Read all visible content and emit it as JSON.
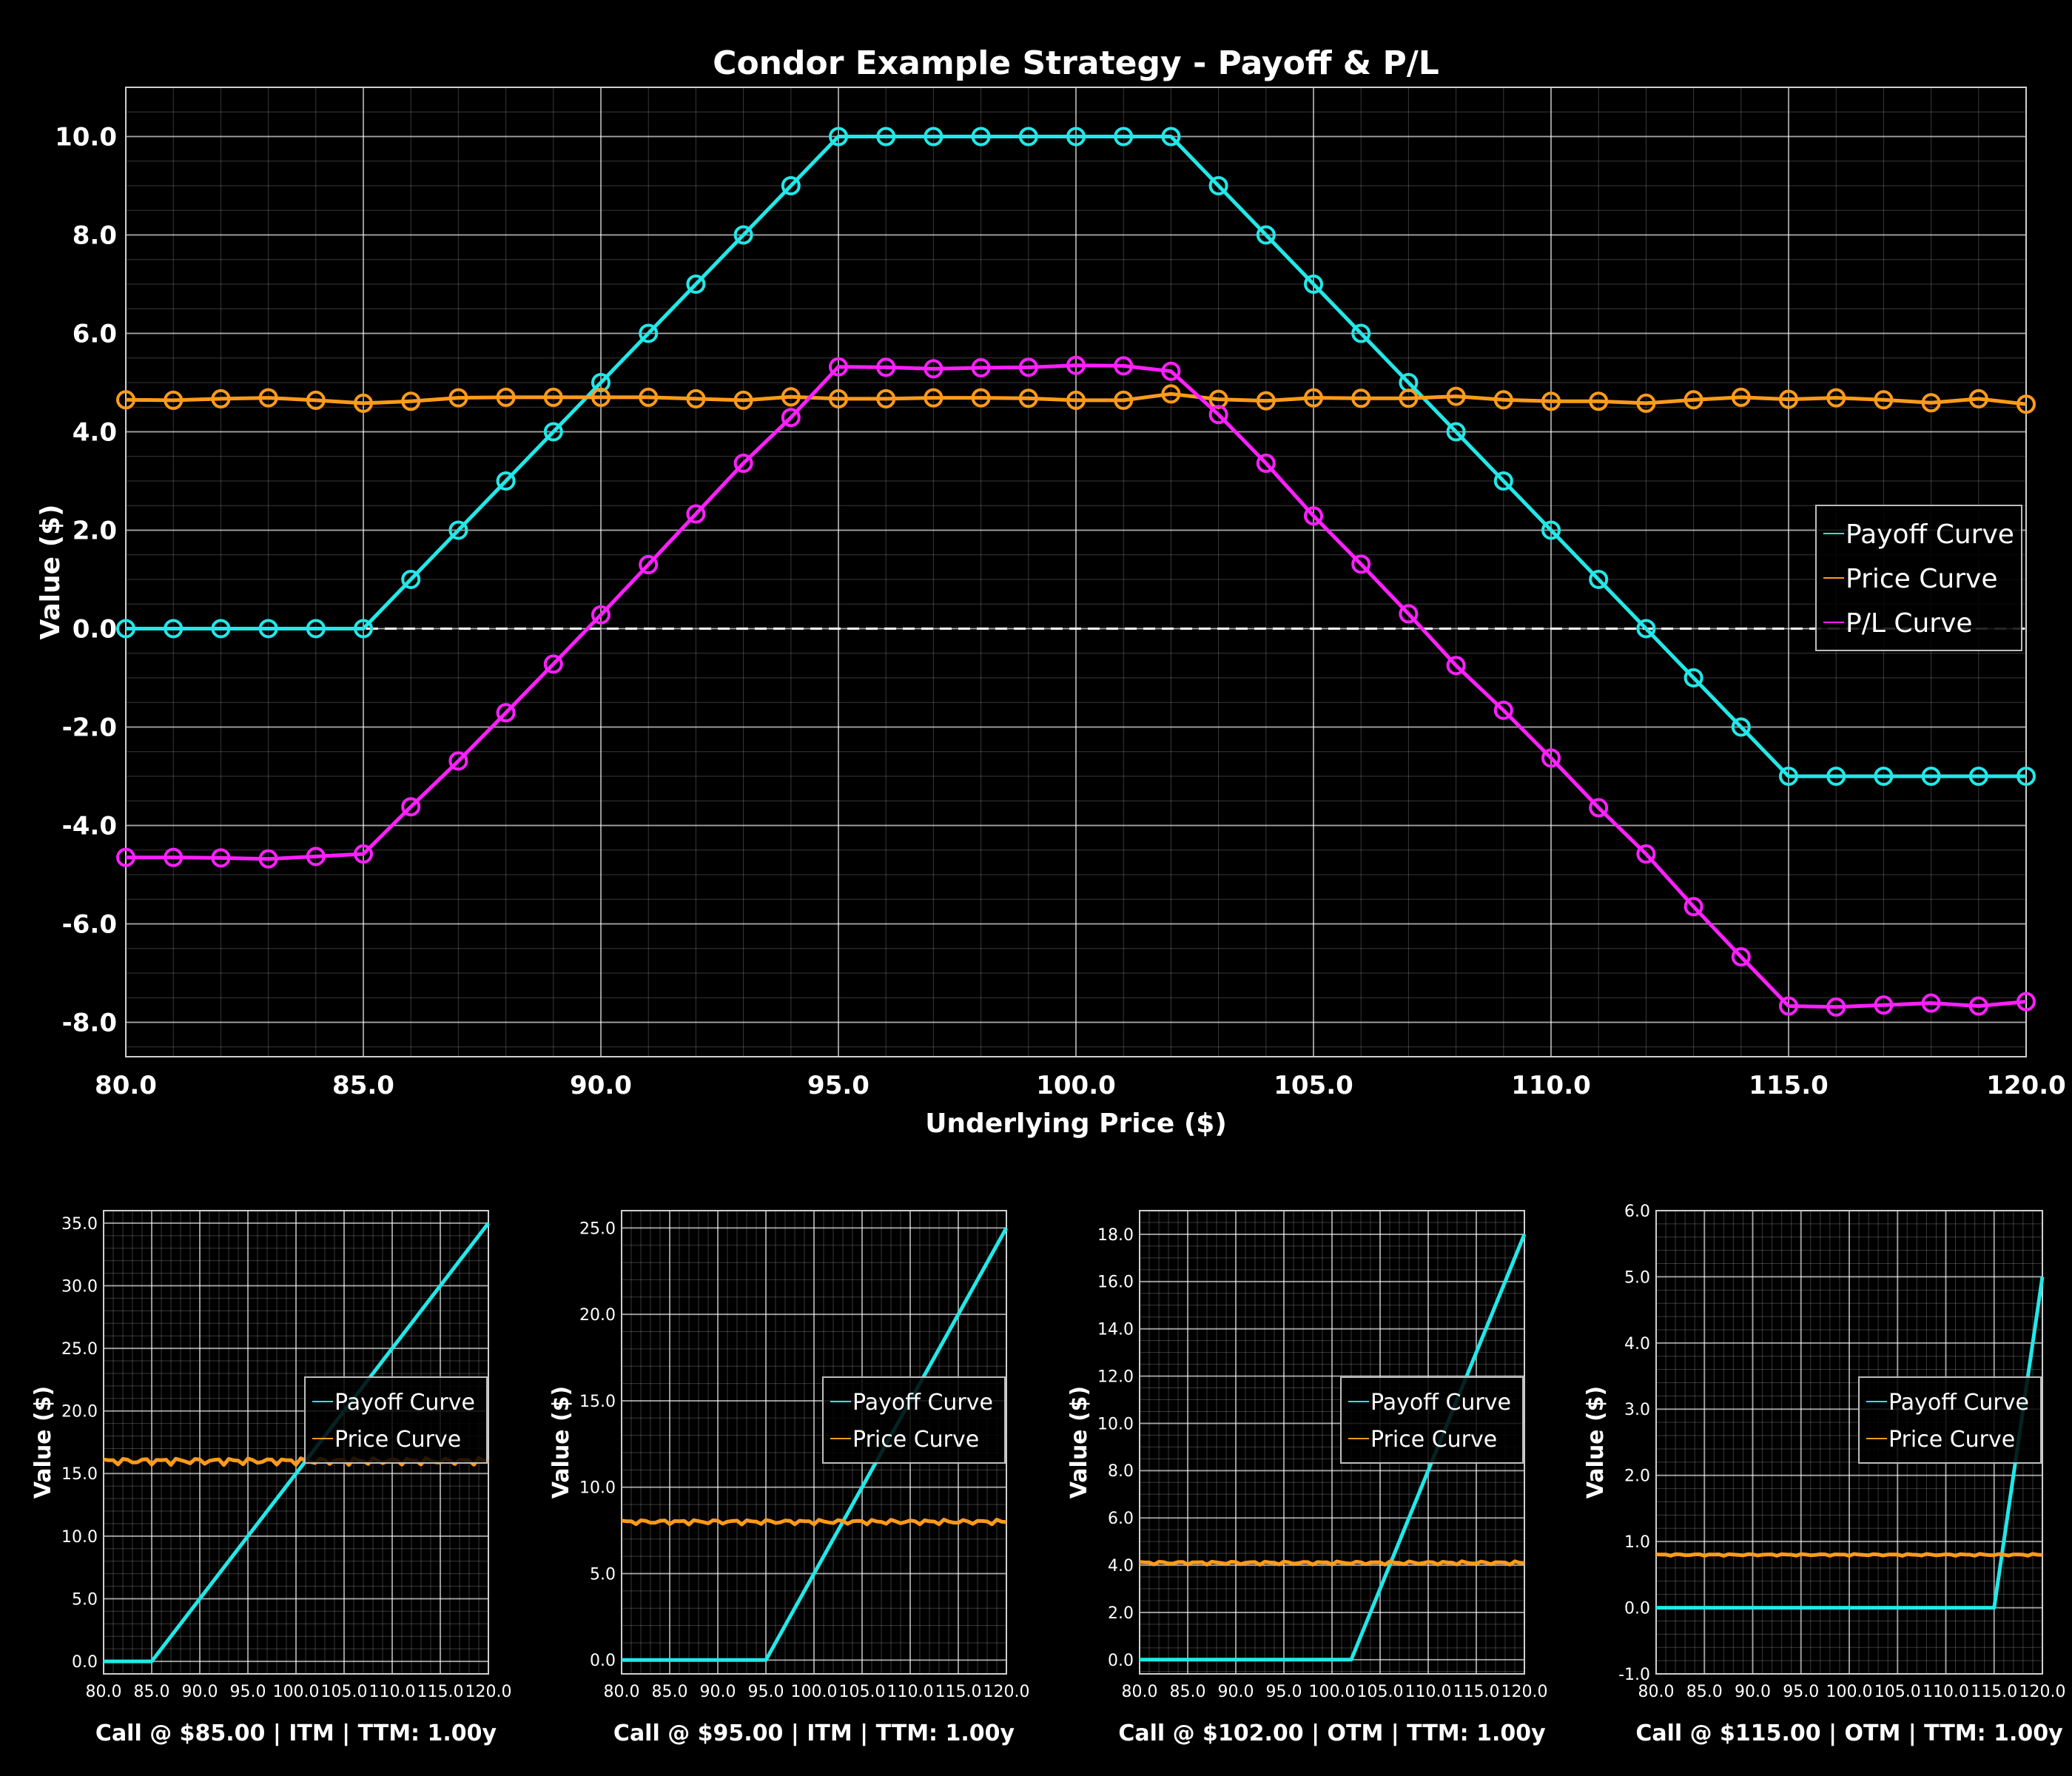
{
  "chart_data": [
    {
      "id": "main",
      "type": "line",
      "title": "Condor Example Strategy - Payoff & P/L",
      "xlabel": "Underlying Price ($)",
      "ylabel": "Value ($)",
      "xlim": [
        80,
        120
      ],
      "ylim": [
        -8.7,
        11
      ],
      "x_ticks": [
        80,
        85,
        90,
        95,
        100,
        105,
        110,
        115,
        120
      ],
      "x_tick_labels": [
        "80.0",
        "85.0",
        "90.0",
        "95.0",
        "100.0",
        "105.0",
        "110.0",
        "115.0",
        "120.0"
      ],
      "y_ticks": [
        -8,
        -6,
        -4,
        -2,
        0,
        2,
        4,
        6,
        8,
        10
      ],
      "y_tick_labels": [
        "-8.0",
        "-6.0",
        "-4.0",
        "-2.0",
        "0.0",
        "2.0",
        "4.0",
        "6.0",
        "8.0",
        "10.0"
      ],
      "grid": true,
      "zero_line": true,
      "legend_position": "right",
      "markers": true,
      "x": [
        80,
        81,
        82,
        83,
        84,
        85,
        86,
        87,
        88,
        89,
        90,
        91,
        92,
        93,
        94,
        95,
        96,
        97,
        98,
        99,
        100,
        101,
        102,
        103,
        104,
        105,
        106,
        107,
        108,
        109,
        110,
        111,
        112,
        113,
        114,
        115,
        116,
        117,
        118,
        119,
        120
      ],
      "series": [
        {
          "name": "Payoff Curve",
          "color": "#22e8e8",
          "values": [
            0,
            0,
            0,
            0,
            0,
            0,
            1,
            2,
            3,
            4,
            5,
            6,
            7,
            8,
            9,
            10,
            10,
            10,
            10,
            10,
            10,
            10,
            10,
            9,
            8,
            7,
            6,
            5,
            4,
            3,
            2,
            1,
            0,
            -1,
            -2,
            -3,
            -3,
            -3,
            -3,
            -3,
            -3
          ]
        },
        {
          "name": "Price Curve",
          "color": "#ff9b1a",
          "values": [
            4.65,
            4.64,
            4.67,
            4.69,
            4.64,
            4.58,
            4.62,
            4.69,
            4.7,
            4.7,
            4.7,
            4.7,
            4.67,
            4.64,
            4.71,
            4.67,
            4.67,
            4.69,
            4.69,
            4.68,
            4.64,
            4.64,
            4.77,
            4.66,
            4.63,
            4.69,
            4.68,
            4.68,
            4.72,
            4.65,
            4.62,
            4.62,
            4.58,
            4.65,
            4.7,
            4.66,
            4.69,
            4.65,
            4.59,
            4.67,
            4.56
          ]
        },
        {
          "name": "P/L Curve",
          "color": "#ff1fff",
          "values": [
            -4.65,
            -4.65,
            -4.66,
            -4.68,
            -4.63,
            -4.58,
            -3.62,
            -2.69,
            -1.71,
            -0.72,
            0.28,
            1.3,
            2.33,
            3.36,
            4.29,
            5.32,
            5.31,
            5.28,
            5.3,
            5.31,
            5.35,
            5.34,
            5.23,
            4.35,
            3.36,
            2.29,
            1.31,
            0.3,
            -0.75,
            -1.66,
            -2.63,
            -3.64,
            -4.58,
            -5.65,
            -6.67,
            -7.67,
            -7.69,
            -7.65,
            -7.61,
            -7.67,
            -7.58
          ]
        }
      ]
    },
    {
      "id": "sub1",
      "type": "line",
      "xlabel": "Call @ $85.00 | ITM | TTM: 1.00y",
      "ylabel": "Value ($)",
      "xlim": [
        80,
        120
      ],
      "ylim": [
        -1,
        36
      ],
      "x_ticks": [
        80,
        85,
        90,
        95,
        100,
        105,
        110,
        115,
        120
      ],
      "x_tick_labels": [
        "80.0",
        "85.0",
        "90.0",
        "95.0",
        "100.0",
        "105.0",
        "110.0",
        "115.0",
        "120.0"
      ],
      "y_ticks": [
        0,
        5,
        10,
        15,
        20,
        25,
        30,
        35
      ],
      "y_tick_labels": [
        "0.0",
        "5.0",
        "10.0",
        "15.0",
        "20.0",
        "25.0",
        "30.0",
        "35.0"
      ],
      "grid": true,
      "legend_position": "right",
      "strike": 85,
      "series": [
        {
          "name": "Payoff Curve",
          "color": "#22e8e8",
          "kind": "payoff"
        },
        {
          "name": "Price Curve",
          "color": "#ff9b1a",
          "kind": "flat",
          "level": 16.0
        }
      ]
    },
    {
      "id": "sub2",
      "type": "line",
      "xlabel": "Call @ $95.00 | ITM | TTM: 1.00y",
      "ylabel": "Value ($)",
      "xlim": [
        80,
        120
      ],
      "ylim": [
        -0.8,
        26
      ],
      "x_ticks": [
        80,
        85,
        90,
        95,
        100,
        105,
        110,
        115,
        120
      ],
      "x_tick_labels": [
        "80.0",
        "85.0",
        "90.0",
        "95.0",
        "100.0",
        "105.0",
        "110.0",
        "115.0",
        "120.0"
      ],
      "y_ticks": [
        0,
        5,
        10,
        15,
        20,
        25
      ],
      "y_tick_labels": [
        "0.0",
        "5.0",
        "10.0",
        "15.0",
        "20.0",
        "25.0"
      ],
      "grid": true,
      "legend_position": "right",
      "strike": 95,
      "series": [
        {
          "name": "Payoff Curve",
          "color": "#22e8e8",
          "kind": "payoff"
        },
        {
          "name": "Price Curve",
          "color": "#ff9b1a",
          "kind": "flat",
          "level": 8.0
        }
      ]
    },
    {
      "id": "sub3",
      "type": "line",
      "xlabel": "Call @ $102.00 | OTM | TTM: 1.00y",
      "ylabel": "Value ($)",
      "xlim": [
        80,
        120
      ],
      "ylim": [
        -0.6,
        19
      ],
      "x_ticks": [
        80,
        85,
        90,
        95,
        100,
        105,
        110,
        115,
        120
      ],
      "x_tick_labels": [
        "80.0",
        "85.0",
        "90.0",
        "95.0",
        "100.0",
        "105.0",
        "110.0",
        "115.0",
        "120.0"
      ],
      "y_ticks": [
        0,
        2,
        4,
        6,
        8,
        10,
        12,
        14,
        16,
        18
      ],
      "y_tick_labels": [
        "0.0",
        "2.0",
        "4.0",
        "6.0",
        "8.0",
        "10.0",
        "12.0",
        "14.0",
        "16.0",
        "18.0"
      ],
      "grid": true,
      "legend_position": "right",
      "strike": 102,
      "series": [
        {
          "name": "Payoff Curve",
          "color": "#22e8e8",
          "kind": "payoff"
        },
        {
          "name": "Price Curve",
          "color": "#ff9b1a",
          "kind": "flat",
          "level": 4.1
        }
      ]
    },
    {
      "id": "sub4",
      "type": "line",
      "xlabel": "Call @ $115.00 | OTM | TTM: 1.00y",
      "ylabel": "Value ($)",
      "xlim": [
        80,
        120
      ],
      "ylim": [
        -1,
        6
      ],
      "x_ticks": [
        80,
        85,
        90,
        95,
        100,
        105,
        110,
        115,
        120
      ],
      "x_tick_labels": [
        "80.0",
        "85.0",
        "90.0",
        "95.0",
        "100.0",
        "105.0",
        "110.0",
        "115.0",
        "120.0"
      ],
      "y_ticks": [
        -1,
        0,
        1,
        2,
        3,
        4,
        5,
        6
      ],
      "y_tick_labels": [
        "-1.0",
        "0.0",
        "1.0",
        "2.0",
        "3.0",
        "4.0",
        "5.0",
        "6.0"
      ],
      "grid": true,
      "legend_position": "right",
      "strike": 115,
      "series": [
        {
          "name": "Payoff Curve",
          "color": "#22e8e8",
          "kind": "payoff"
        },
        {
          "name": "Price Curve",
          "color": "#ff9b1a",
          "kind": "flat",
          "level": 0.8
        }
      ]
    }
  ]
}
